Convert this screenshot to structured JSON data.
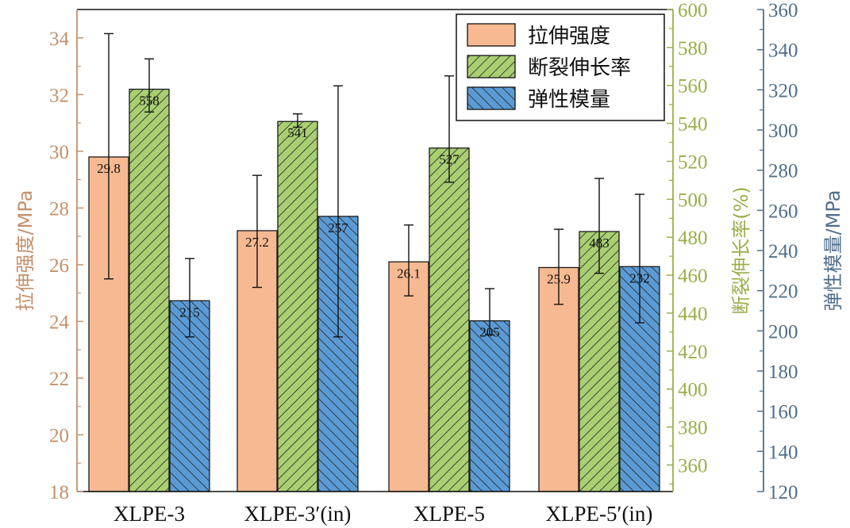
{
  "chart_data": {
    "type": "bar",
    "categories": [
      "XLPE-3",
      "XLPE-3′(in)",
      "XLPE-5",
      "XLPE-5′(in)"
    ],
    "series": [
      {
        "name": "拉伸强度",
        "axis": "left",
        "color": "#f7b991",
        "hatch": "none",
        "values": [
          29.8,
          27.2,
          26.1,
          25.9
        ],
        "labels": [
          "29.8",
          "27.2",
          "26.1",
          "25.9"
        ],
        "err_low": [
          25.5,
          25.2,
          24.9,
          24.6
        ],
        "err_high": [
          34.15,
          29.15,
          27.4,
          27.25
        ]
      },
      {
        "name": "断裂伸长率",
        "axis": "right1",
        "color": "#a9cf72",
        "hatch": "forward",
        "values": [
          558,
          541,
          527,
          483
        ],
        "labels": [
          "558",
          "541",
          "527",
          "483"
        ],
        "err_low": [
          546,
          538,
          509,
          461
        ],
        "err_high": [
          574,
          545,
          565,
          511
        ]
      },
      {
        "name": "弹性模量",
        "axis": "right2",
        "color": "#5b9bd5",
        "hatch": "backward",
        "values": [
          215,
          257,
          205,
          232
        ],
        "labels": [
          "215",
          "257",
          "205",
          "232"
        ],
        "err_low": [
          197,
          197,
          198,
          204
        ],
        "err_high": [
          236,
          322,
          221,
          268
        ]
      }
    ],
    "axes": {
      "left": {
        "label": "拉伸强度/MPa",
        "min": 18,
        "max": 35,
        "ticks": [
          18,
          20,
          22,
          24,
          26,
          28,
          30,
          32,
          34
        ],
        "color": "#c4906a"
      },
      "right1": {
        "label": "断裂伸长率(%)",
        "min": 346,
        "max": 600,
        "ticks": [
          360,
          380,
          400,
          420,
          440,
          460,
          480,
          500,
          520,
          540,
          560,
          580,
          600
        ],
        "color": "#98b04a"
      },
      "right2": {
        "label": "弹性模量/MPa",
        "min": 120,
        "max": 360,
        "ticks": [
          120,
          140,
          160,
          180,
          200,
          220,
          240,
          260,
          280,
          300,
          320,
          340,
          360
        ],
        "color": "#4f6f8c"
      }
    },
    "legend_position": "top-right",
    "grid": false
  }
}
